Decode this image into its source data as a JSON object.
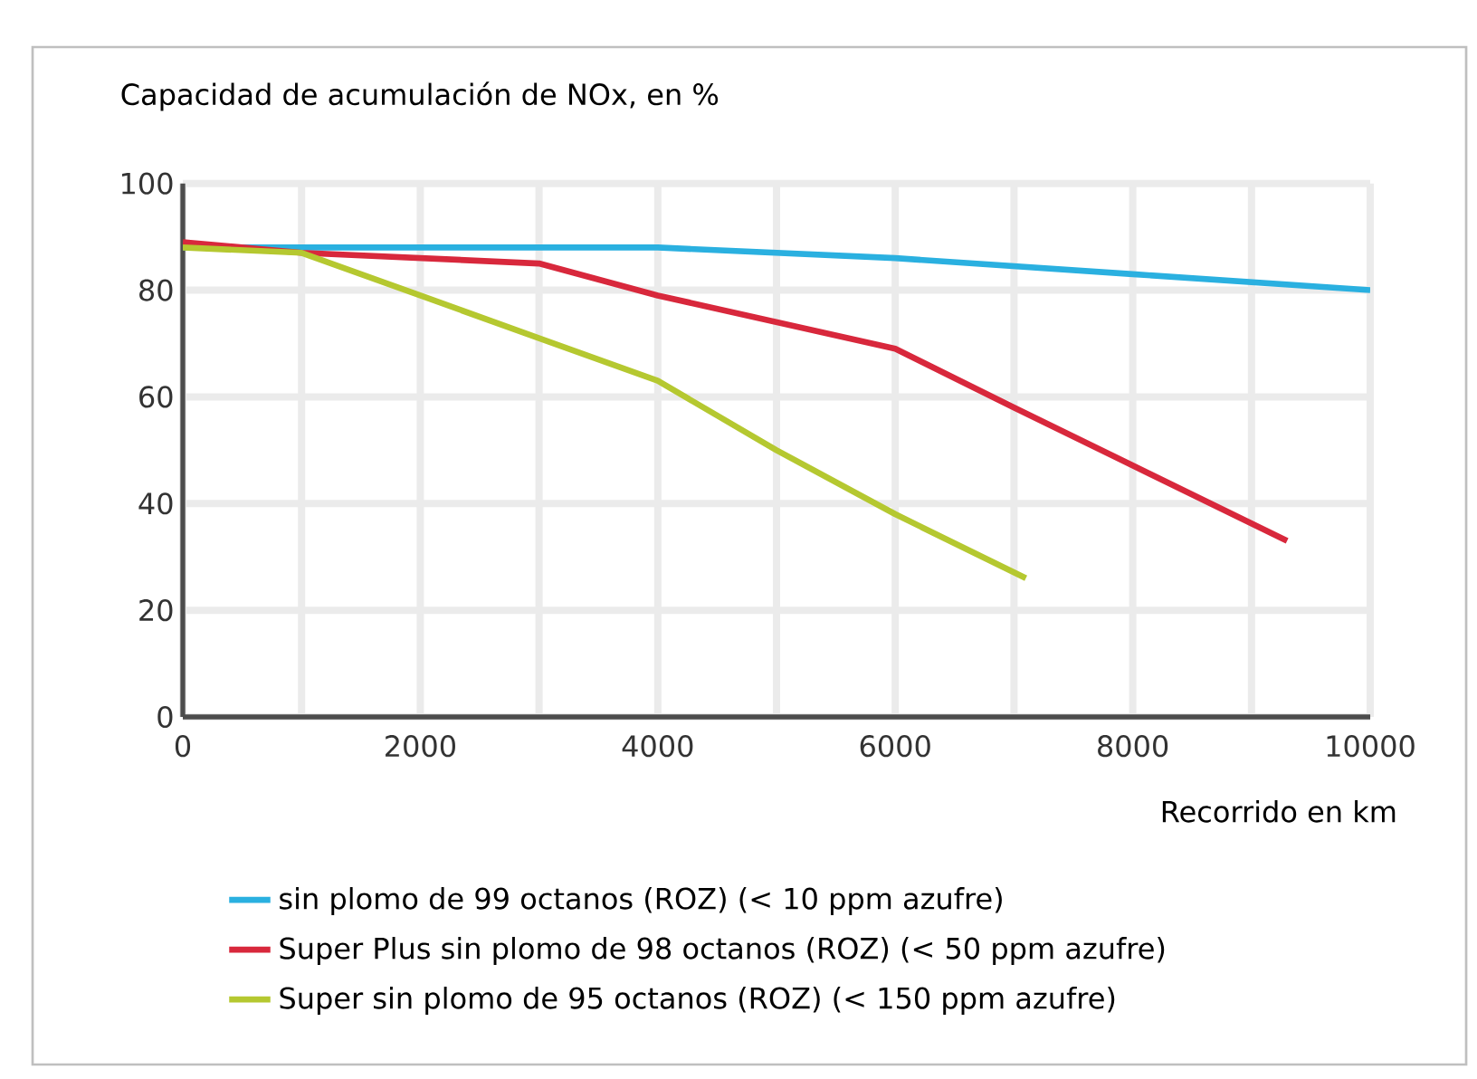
{
  "chart_data": {
    "type": "line",
    "ylabel": "Capacidad de acumulación de NOx, en %",
    "xlabel": "Recorrido en km",
    "xlim": [
      0,
      10000
    ],
    "xticks": [
      0,
      2000,
      4000,
      6000,
      8000,
      10000
    ],
    "ylim": [
      0,
      100
    ],
    "yticks": [
      0,
      20,
      40,
      60,
      80,
      100
    ],
    "grid": true,
    "legend": "bottom",
    "marker": "none",
    "line_style": "solid",
    "series": [
      {
        "name": "sin plomo de 99 octanos (ROZ) (< 10 ppm azufre)",
        "color": "#2ab0e0",
        "x": [
          0,
          1000,
          4000,
          6000,
          8000,
          10000
        ],
        "values": [
          88,
          88,
          88,
          86,
          83,
          80
        ]
      },
      {
        "name": "Super Plus sin plomo de 98 octanos (ROZ) (< 50 ppm azufre)",
        "color": "#d8283c",
        "x": [
          0,
          1000,
          3000,
          4000,
          6000,
          7000,
          9300
        ],
        "values": [
          89,
          87,
          85,
          79,
          69,
          58,
          33
        ]
      },
      {
        "name": "Super sin plomo de 95 octanos (ROZ) (< 150 ppm azufre)",
        "color": "#b5c830",
        "x": [
          0,
          1000,
          2000,
          3000,
          4000,
          5000,
          6000,
          7100
        ],
        "values": [
          88,
          87,
          79,
          71,
          63,
          50,
          38,
          26
        ]
      }
    ]
  }
}
